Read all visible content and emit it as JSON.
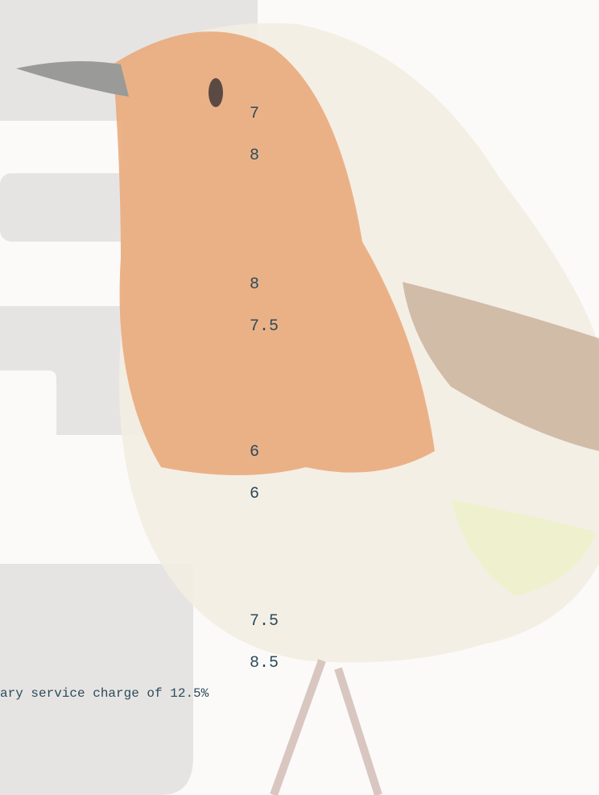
{
  "prices": [
    7,
    8,
    8,
    7.5,
    6,
    6,
    7.5,
    8.5
  ],
  "footer": "ary service charge of 12.5%"
}
